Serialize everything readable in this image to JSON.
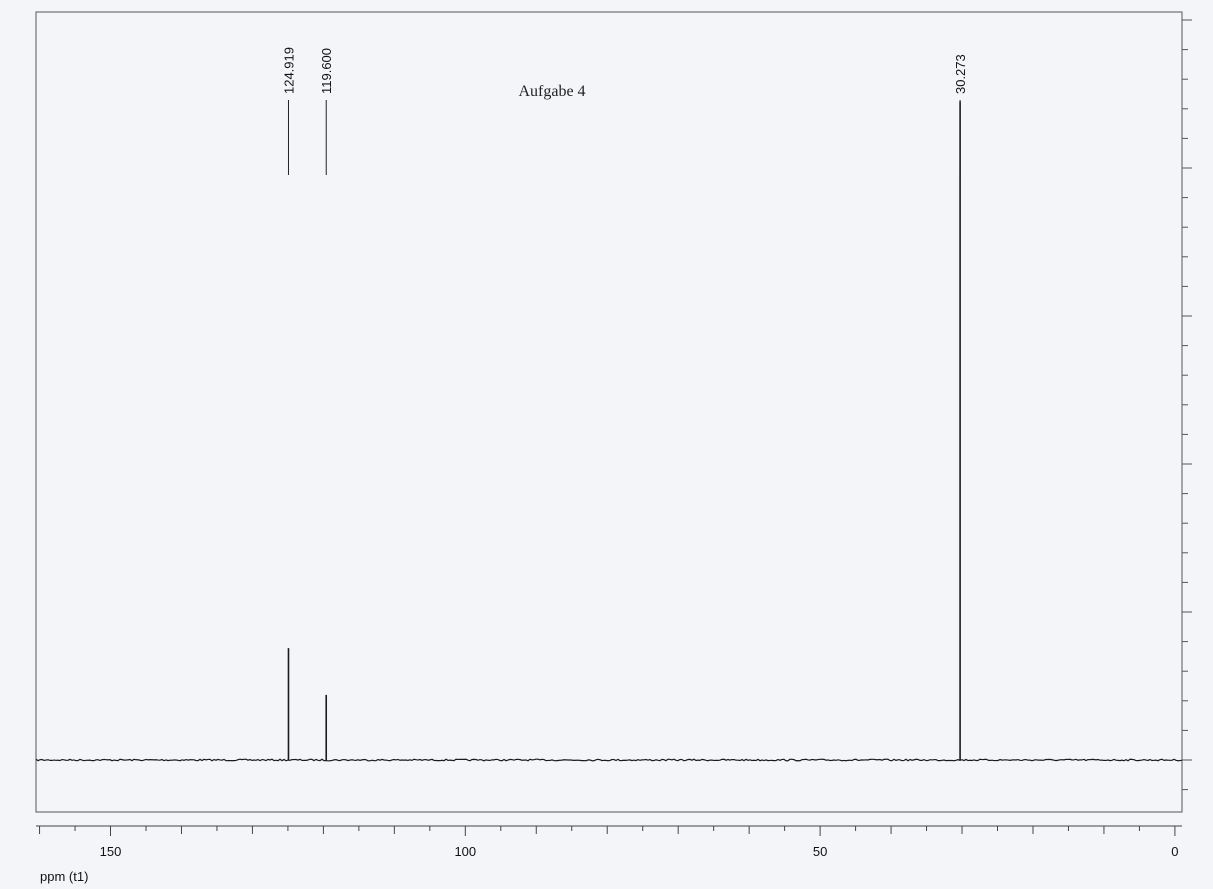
{
  "chart_data": {
    "type": "line",
    "title": "Aufgabe 4",
    "xlabel": "ppm (t1)",
    "ylabel": "",
    "xlim": [
      160.5,
      -1
    ],
    "x_ticks": [
      150,
      100,
      50,
      0
    ],
    "x_tick_labels": [
      "150",
      "100",
      "50",
      "0"
    ],
    "x_minor_step": 10,
    "y_range": [
      0,
      1
    ],
    "grid": false,
    "series": [
      {
        "peaks": [
          {
            "x": 124.919,
            "y": 0.158,
            "label": "124.919"
          },
          {
            "x": 119.6,
            "y": 0.092,
            "label": "119.600"
          },
          {
            "x": 30.273,
            "y": 0.93,
            "label": "30.273"
          }
        ]
      }
    ],
    "colors": {
      "line": "#1a1a1a",
      "frame": "#555555",
      "background": "#f4f5f8"
    }
  }
}
